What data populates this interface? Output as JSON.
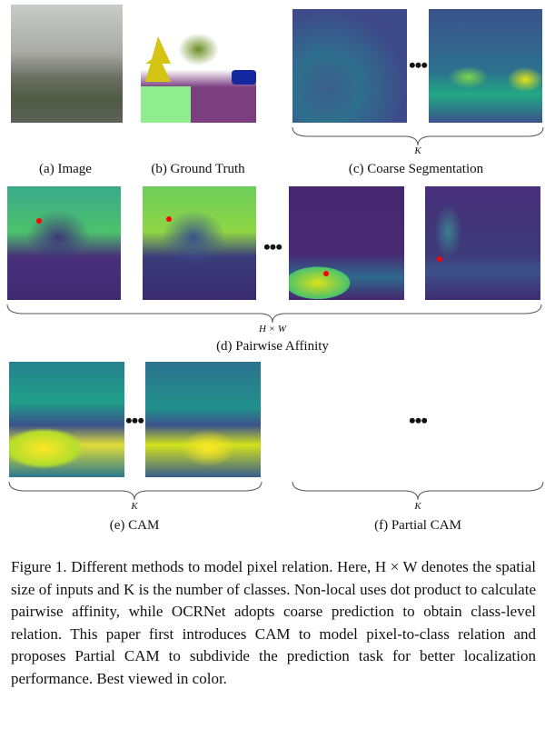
{
  "panels": {
    "a": {
      "label": "(a) Image"
    },
    "b": {
      "label": "(b) Ground Truth"
    },
    "c": {
      "label": "(c) Coarse Segmentation",
      "brace_label": "K"
    },
    "d": {
      "label": "(d) Pairwise Affinity",
      "brace_label": "H × W"
    },
    "e": {
      "label": "(e) CAM",
      "brace_label": "K"
    },
    "f": {
      "label": "(f) Partial CAM",
      "brace_label": "K"
    }
  },
  "ellipsis": "•••",
  "caption": "Figure 1. Different methods to model pixel relation. Here, H × W denotes the spatial size of inputs and K is the number of classes. Non-local uses dot product to calculate pairwise affinity, while OCRNet adopts coarse prediction to obtain class-level relation. This paper first introduces CAM to model pixel-to-class relation and proposes Partial CAM to subdivide the prediction task for better localization performance. Best viewed in color.",
  "colors": {
    "affinity_point": "#ff0000"
  }
}
